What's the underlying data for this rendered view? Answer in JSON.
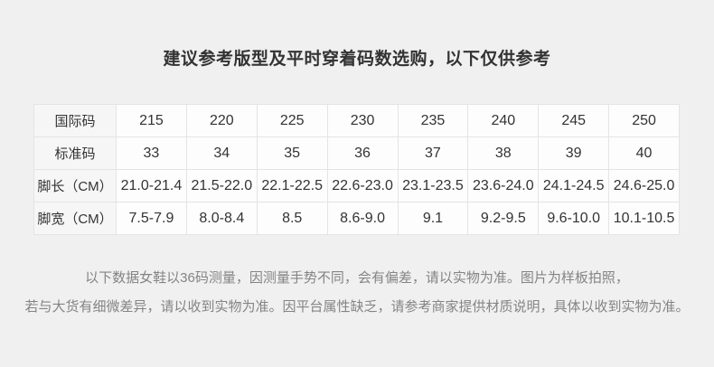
{
  "page": {
    "title": "建议参考版型及平时穿着码数选购，以下仅供参考"
  },
  "size_table": {
    "rows": [
      {
        "label": "国际码",
        "values": [
          "215",
          "220",
          "225",
          "230",
          "235",
          "240",
          "245",
          "250"
        ]
      },
      {
        "label": "标准码",
        "values": [
          "33",
          "34",
          "35",
          "36",
          "37",
          "38",
          "39",
          "40"
        ]
      },
      {
        "label": "脚长（CM）",
        "values": [
          "21.0-21.4",
          "21.5-22.0",
          "22.1-22.5",
          "22.6-23.0",
          "23.1-23.5",
          "23.6-24.0",
          "24.1-24.5",
          "24.6-25.0"
        ]
      },
      {
        "label": "脚宽（CM）",
        "values": [
          "7.5-7.9",
          "8.0-8.4",
          "8.5",
          "8.6-9.0",
          "9.1",
          "9.2-9.5",
          "9.6-10.0",
          "10.1-10.5"
        ]
      }
    ]
  },
  "disclaimer": {
    "line1": "以下数据女鞋以36码测量，因测量手势不同，会有偏差，请以实物为准。图片为样板拍照，",
    "line2": "若与大货有细微差异，请以收到实物为准。因平台属性缺乏，请参考商家提供材质说明，具体以收到实物为准。"
  },
  "colors": {
    "page_bg": "#f0f0f0",
    "data_cell_bg": "#fdfdfd",
    "label_cell_bg": "#f6f6f6",
    "cell_border": "#e4e4e4",
    "title_text": "#333333",
    "table_text": "#333333",
    "disclaimer_text": "#848484"
  }
}
